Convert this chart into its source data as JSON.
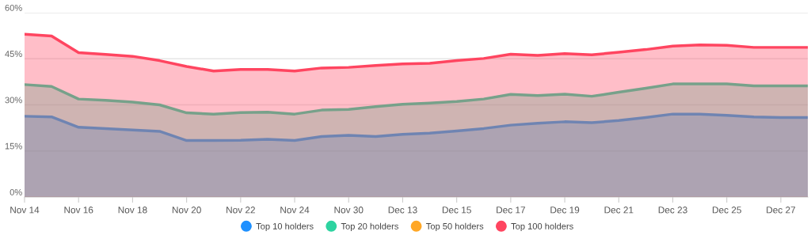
{
  "chart_data": {
    "type": "area",
    "categories": [
      "Nov 14",
      null,
      "Nov 16",
      null,
      "Nov 18",
      null,
      "Nov 20",
      null,
      "Nov 22",
      null,
      "Nov 24",
      null,
      "Nov 30",
      null,
      "Dec 13",
      null,
      "Dec 15",
      null,
      "Dec 17",
      null,
      "Dec 19",
      null,
      "Dec 21",
      null,
      "Dec 23",
      null,
      "Dec 25",
      null,
      "Dec 27",
      null
    ],
    "series": [
      {
        "name": "Top 10 holders",
        "color": "#1e90ff",
        "values": [
          26.3,
          26.1,
          22.7,
          22.3,
          21.8,
          21.4,
          18.4,
          18.4,
          18.5,
          18.8,
          18.4,
          19.7,
          20.1,
          19.7,
          20.4,
          20.8,
          21.5,
          22.3,
          23.4,
          24.0,
          24.5,
          24.2,
          24.9,
          25.9,
          27.0,
          27.0,
          26.6,
          26.1,
          25.9,
          25.9
        ]
      },
      {
        "name": "Top 20 holders",
        "color": "#2ed3a0",
        "values": [
          36.6,
          36.0,
          31.9,
          31.5,
          30.9,
          30.0,
          27.4,
          27.0,
          27.5,
          27.6,
          27.0,
          28.3,
          28.5,
          29.4,
          30.2,
          30.6,
          31.1,
          31.9,
          33.4,
          33.0,
          33.5,
          32.8,
          34.1,
          35.4,
          36.8,
          36.8,
          36.8,
          36.2,
          36.2,
          36.2
        ]
      },
      {
        "name": "Top 50 holders",
        "color": "#ffa726",
        "values": [
          null,
          null,
          null,
          null,
          null,
          null,
          null,
          null,
          null,
          null,
          null,
          null,
          null,
          null,
          null,
          null,
          null,
          null,
          null,
          null,
          null,
          null,
          null,
          null,
          null,
          null,
          null,
          null,
          null,
          null
        ]
      },
      {
        "name": "Top 100 holders",
        "color": "#ff4560",
        "values": [
          53.0,
          52.4,
          47.0,
          46.4,
          45.8,
          44.4,
          42.5,
          41.0,
          41.5,
          41.5,
          41.0,
          42.0,
          42.2,
          42.8,
          43.3,
          43.5,
          44.4,
          45.1,
          46.5,
          46.1,
          46.7,
          46.3,
          47.1,
          48.0,
          49.1,
          49.5,
          49.4,
          48.7,
          48.7,
          48.7
        ]
      }
    ],
    "ylim": [
      0,
      60
    ],
    "yticks": [
      {
        "value": 0,
        "label": "0%"
      },
      {
        "value": 15,
        "label": "15%"
      },
      {
        "value": 30,
        "label": "30%"
      },
      {
        "value": 45,
        "label": "45%"
      },
      {
        "value": 60,
        "label": "60%"
      }
    ],
    "grid": "y",
    "legend": "bottom",
    "marker": "none",
    "line_style": "solid"
  }
}
